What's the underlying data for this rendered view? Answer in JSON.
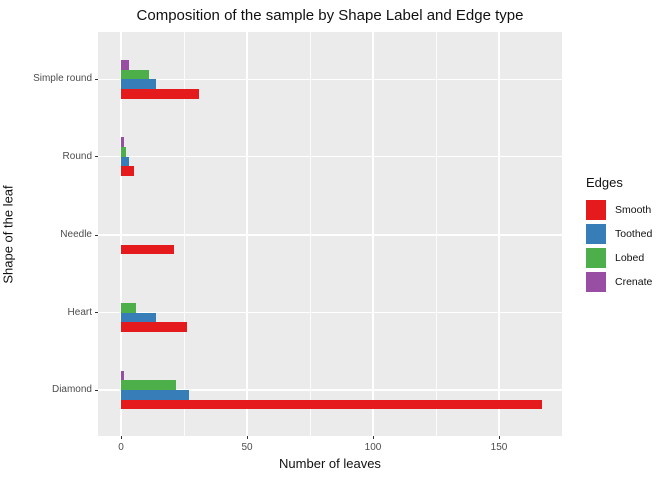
{
  "title": "Composition of the sample by Shape Label and Edge type",
  "chart_data": {
    "type": "bar",
    "orientation": "horizontal",
    "title": "Composition of the sample by Shape Label and Edge type",
    "xlabel": "Number of leaves",
    "ylabel": "Shape of the leaf",
    "categories": [
      "Simple round",
      "Round",
      "Needle",
      "Heart",
      "Diamond"
    ],
    "series": [
      {
        "name": "Smooth",
        "color": "#E41A1C",
        "values": [
          31,
          5,
          21,
          26,
          167
        ]
      },
      {
        "name": "Toothed",
        "color": "#377EB8",
        "values": [
          14,
          3,
          0,
          14,
          27
        ]
      },
      {
        "name": "Lobed",
        "color": "#4DAF4A",
        "values": [
          11,
          2,
          0,
          6,
          22
        ]
      },
      {
        "name": "Crenate",
        "color": "#984EA3",
        "values": [
          3,
          1,
          0,
          0,
          1
        ]
      }
    ],
    "legend_title": "Edges",
    "legend_position": "right",
    "x_major_ticks": [
      0,
      50,
      100,
      150
    ],
    "x_minor_ticks": [
      25,
      75,
      125
    ],
    "xlim": [
      -9,
      175
    ],
    "grid": true,
    "panel_background": "#EBEBEB",
    "grid_color": "#FFFFFF",
    "tick_label_color": "#4D4D4D"
  }
}
